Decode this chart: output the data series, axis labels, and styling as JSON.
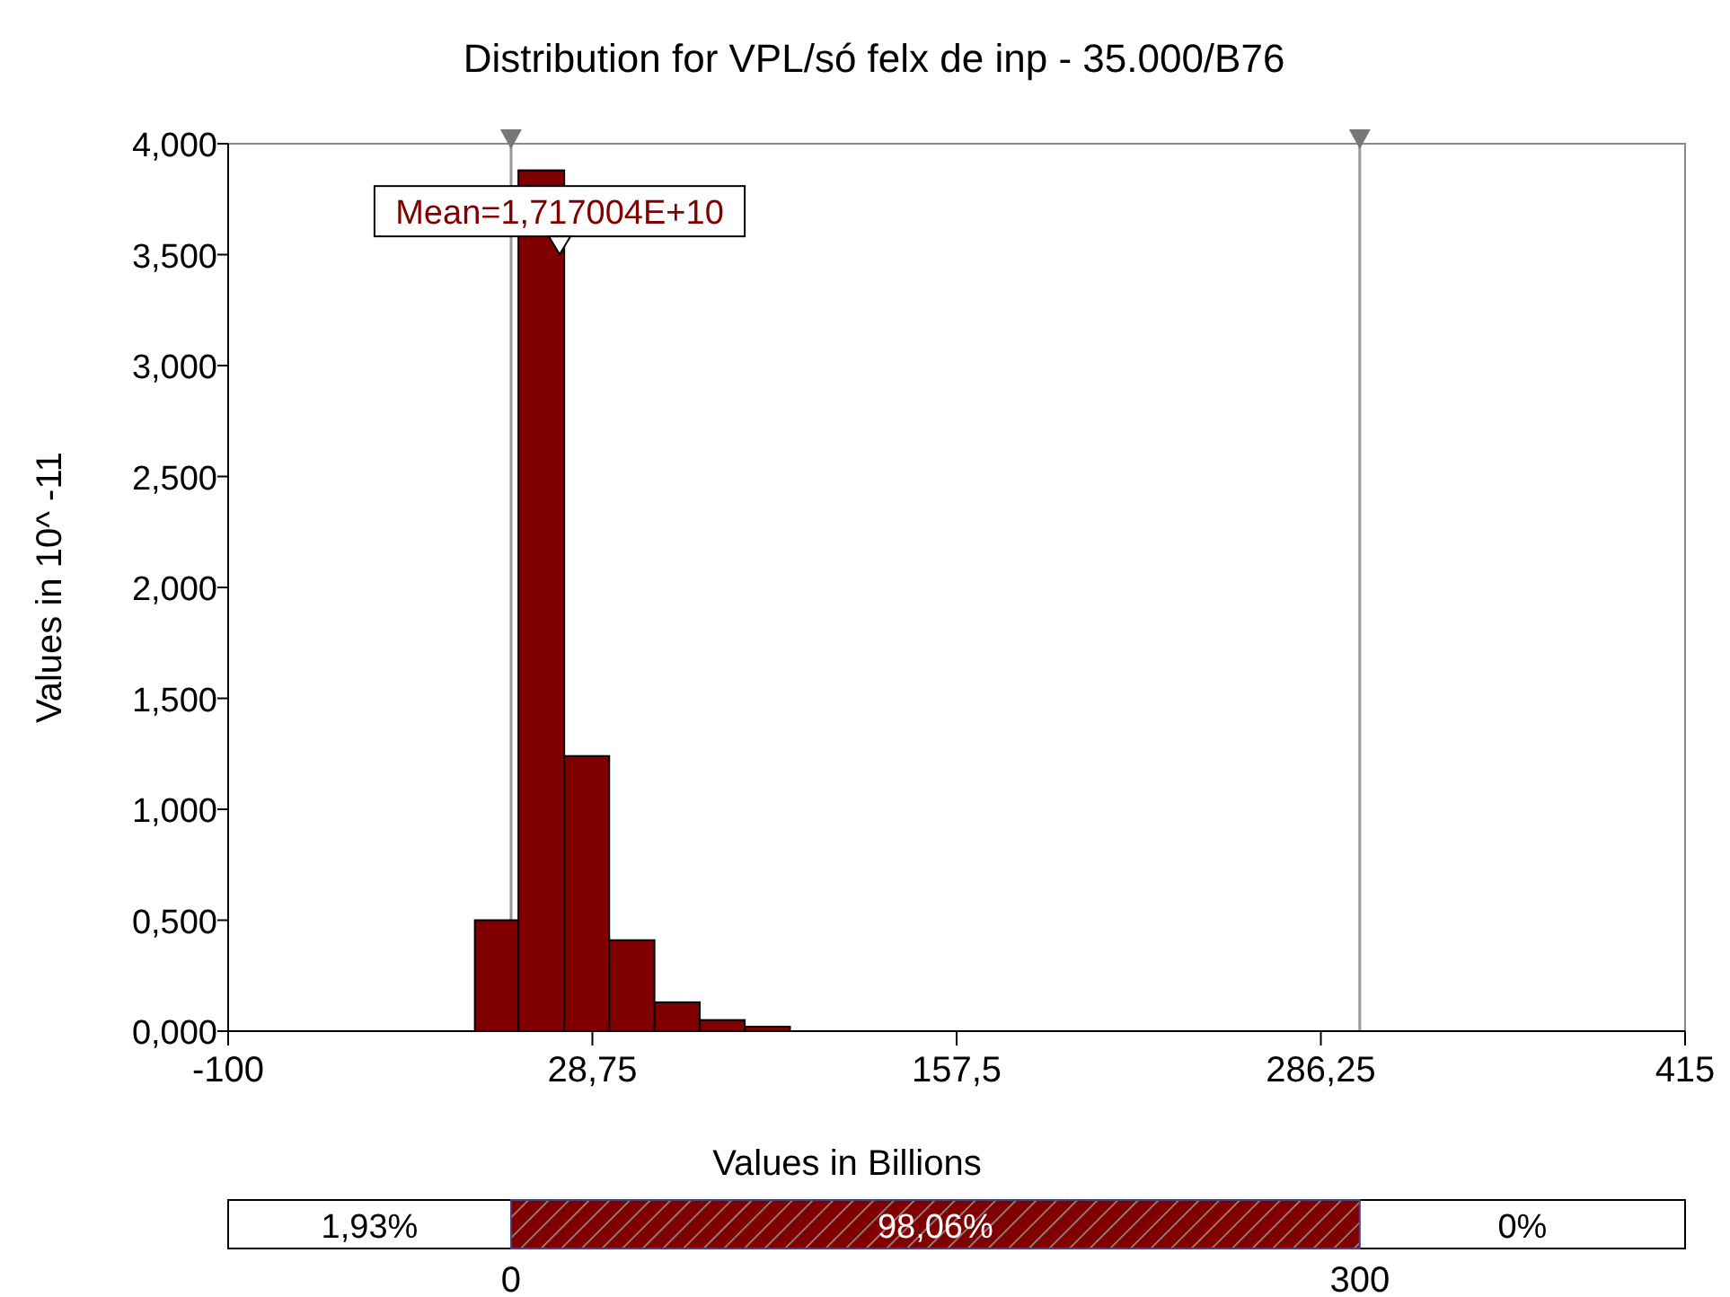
{
  "chart_data": {
    "type": "histogram",
    "title": "Distribution for VPL/só felx de inp - 35.000/B76",
    "xlabel": "Values in Billions",
    "ylabel": "Values in 10^ -11",
    "bins": [
      -12.8,
      2.6,
      18.8,
      34.7,
      50.7,
      66.7,
      82.6,
      98.6
    ],
    "values": [
      0.5,
      3.88,
      1.24,
      0.41,
      0.13,
      0.05,
      0.02
    ],
    "color": "#800000",
    "xlim": [
      -100,
      415
    ],
    "xticks": [
      -100,
      {
        "value": 28.75,
        "label": "28,75"
      },
      {
        "value": 157.5,
        "label": "157,5"
      },
      {
        "value": 286.25,
        "label": "286,25"
      },
      415
    ],
    "ylim": [
      0,
      4
    ],
    "yticks": [
      {
        "value": 0,
        "label": "0,000"
      },
      {
        "value": 0.5,
        "label": "0,500"
      },
      {
        "value": 1,
        "label": "1,000"
      },
      {
        "value": 1.5,
        "label": "1,500"
      },
      {
        "value": 2,
        "label": "2,000"
      },
      {
        "value": 2.5,
        "label": "2,500"
      },
      {
        "value": 3,
        "label": "3,000"
      },
      {
        "value": 3.5,
        "label": "3,500"
      },
      {
        "value": 4,
        "label": "4,000"
      }
    ],
    "ref_lines": [
      {
        "axis": "x",
        "value": 0,
        "color": "#999999"
      },
      {
        "axis": "x",
        "value": 300,
        "color": "#999999"
      }
    ],
    "annotations": [
      {
        "text": "Mean=1,717004E+10",
        "x": 17.17,
        "y": 3.55
      },
      "1,93%",
      "98,06%",
      "0%",
      "0",
      "300"
    ],
    "grid": false
  }
}
